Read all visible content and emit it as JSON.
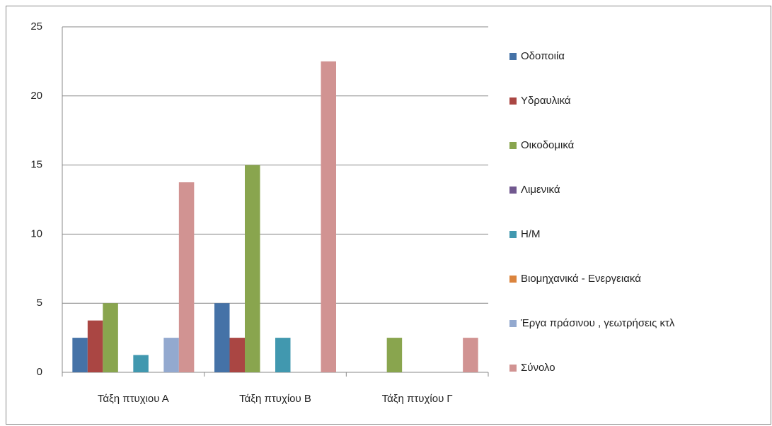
{
  "chart_data": {
    "type": "bar",
    "categories": [
      "Τάξη πτυχιου Α",
      "Τάξη πτυχίου Β",
      "Τάξη πτυχίου Γ"
    ],
    "series": [
      {
        "name": "Οδοποιία",
        "color": "#4572a7",
        "values": [
          2.5,
          5,
          0
        ]
      },
      {
        "name": "Υδραυλικά",
        "color": "#aa4643",
        "values": [
          3.75,
          2.5,
          0
        ]
      },
      {
        "name": "Οικοδομικά",
        "color": "#89a54e",
        "values": [
          5,
          15,
          2.5
        ]
      },
      {
        "name": "Λιμενικά",
        "color": "#71588f",
        "values": [
          0,
          0,
          0
        ]
      },
      {
        "name": "Η/Μ",
        "color": "#4198af",
        "values": [
          1.25,
          2.5,
          0
        ]
      },
      {
        "name": "Βιομηχανικά - Ενεργειακά",
        "color": "#db843d",
        "values": [
          0,
          0,
          0
        ]
      },
      {
        "name": "Έργα πράσινου , γεωτρήσεις κτλ",
        "color": "#93a9cf",
        "values": [
          2.5,
          0,
          0
        ]
      },
      {
        "name": "Σύνολο",
        "color": "#d19392",
        "values": [
          13.75,
          22.5,
          2.5
        ]
      }
    ],
    "ylim": [
      0,
      25
    ],
    "yticks": [
      0,
      5,
      10,
      15,
      20,
      25
    ],
    "grid": true,
    "legend": "right"
  }
}
